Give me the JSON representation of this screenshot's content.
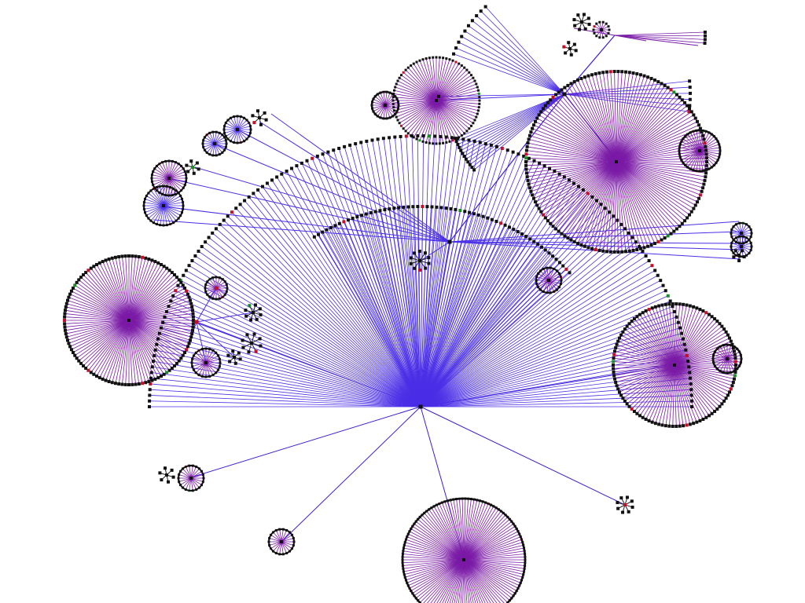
{
  "diagram": {
    "type": "radial-tree-graph",
    "colors": {
      "background": "#ffffff",
      "trunk_edge": "#3a1fd6",
      "fan_edge_blue": "#4a2ee6",
      "fan_edge_purple": "#7a1aa6",
      "node_fill": "#111111",
      "node_accent_red": "#c0102a",
      "node_accent_green": "#1c8c2a"
    }
  }
}
